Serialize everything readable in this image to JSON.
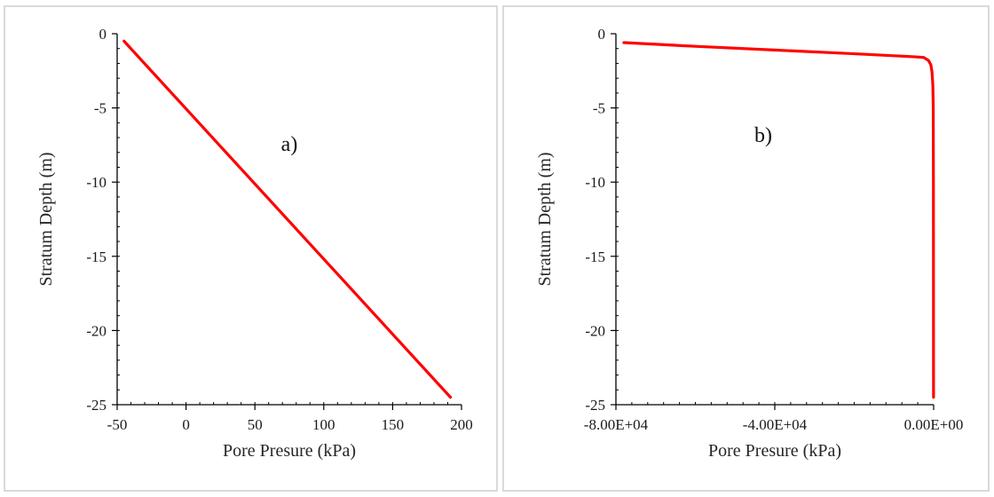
{
  "chart_data": [
    {
      "type": "line",
      "annotation": "a)",
      "xlabel": "Pore Presure (kPa)",
      "ylabel": "Stratum Depth (m)",
      "xlim": [
        -50,
        200
      ],
      "ylim": [
        -25,
        0
      ],
      "xticks": [
        -50,
        0,
        50,
        100,
        150,
        200
      ],
      "xtick_labels": [
        "-50",
        "0",
        "50",
        "100",
        "150",
        "200"
      ],
      "yticks": [
        0,
        -5,
        -10,
        -15,
        -20,
        -25
      ],
      "ytick_labels": [
        "0",
        "-5",
        "-10",
        "-15",
        "-20",
        "-25"
      ],
      "x_minor_step": 10,
      "y_minor_step": 1,
      "grid": false,
      "color": "#ff0000",
      "series": [
        {
          "x": [
            -45,
            192
          ],
          "y": [
            -0.5,
            -24.5
          ]
        }
      ]
    },
    {
      "type": "line",
      "annotation": "b)",
      "xlabel": "Pore Presure (kPa)",
      "ylabel": "Stratum Depth (m)",
      "xlim": [
        -80000,
        0
      ],
      "ylim": [
        -25,
        0
      ],
      "xticks": [
        -80000,
        -40000,
        0
      ],
      "xtick_labels": [
        "-8.00E+04",
        "-4.00E+04",
        "0.00E+00"
      ],
      "yticks": [
        0,
        -5,
        -10,
        -15,
        -20,
        -25
      ],
      "ytick_labels": [
        "0",
        "-5",
        "-10",
        "-15",
        "-20",
        "-25"
      ],
      "x_minor_step": 4000,
      "y_minor_step": 1,
      "grid": false,
      "color": "#ff0000",
      "series": [
        {
          "x": [
            -78000,
            -60000,
            -40000,
            -20000,
            -5000,
            -2500,
            -1300,
            -700,
            -400,
            -200,
            -100,
            -60,
            -30
          ],
          "y": [
            -0.6,
            -0.85,
            -1.1,
            -1.35,
            -1.55,
            -1.6,
            -1.8,
            -2.1,
            -2.6,
            -3.5,
            -5.0,
            -10.0,
            -24.5
          ]
        }
      ]
    }
  ]
}
